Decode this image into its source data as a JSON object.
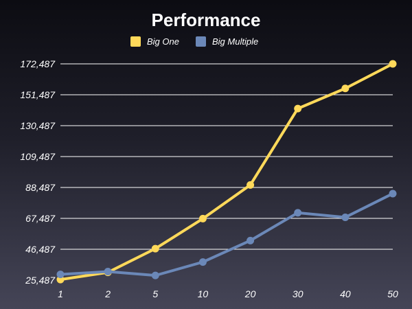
{
  "chart_data": {
    "type": "line",
    "title": "Performance",
    "categories": [
      "1",
      "2",
      "5",
      "10",
      "20",
      "30",
      "40",
      "50"
    ],
    "series": [
      {
        "name": "Big One",
        "color": "#ffd95a",
        "values": [
          25900,
          30800,
          46900,
          67300,
          90200,
          142100,
          155800,
          172487
        ]
      },
      {
        "name": "Big Multiple",
        "color": "#6b88b8",
        "values": [
          29400,
          31300,
          28700,
          37800,
          52400,
          71300,
          68200,
          84300
        ]
      }
    ],
    "yticks": [
      "25,487",
      "46,487",
      "67,487",
      "88,487",
      "109,487",
      "130,487",
      "151,487",
      "172,487"
    ],
    "ylim": [
      25487,
      172487
    ],
    "legend": "top-center",
    "grid": true
  }
}
